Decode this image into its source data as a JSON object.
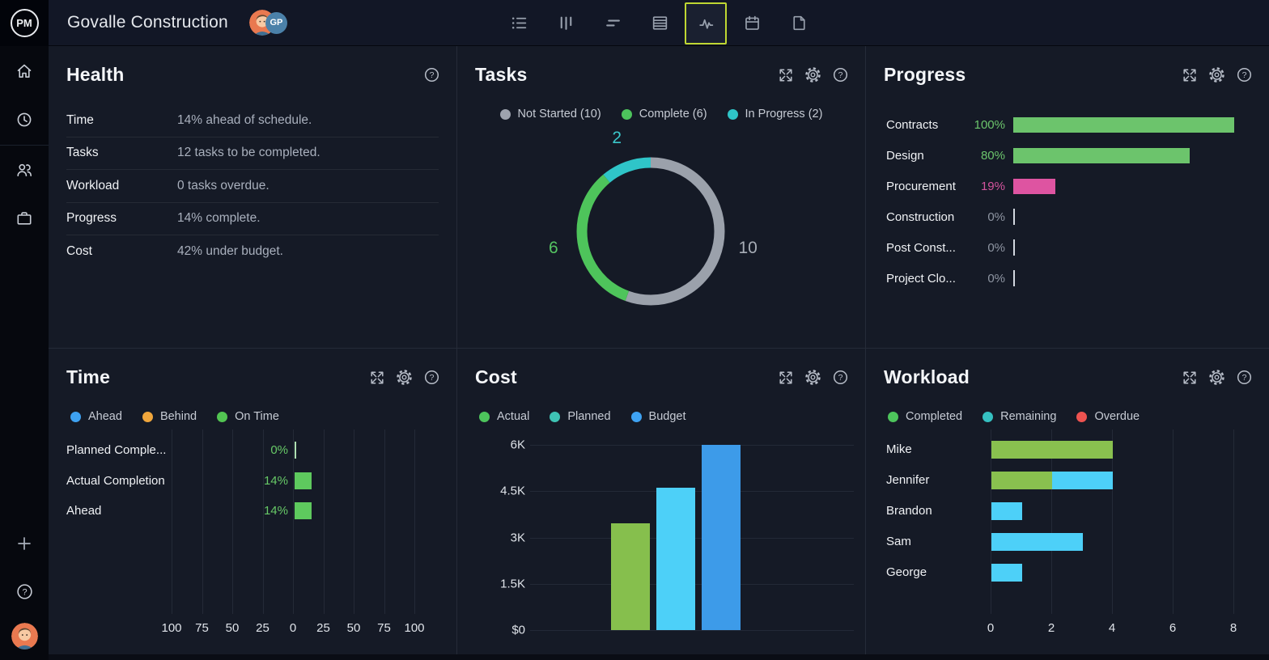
{
  "app": {
    "logo_text": "PM"
  },
  "topbar": {
    "title": "Govalle Construction",
    "avatar_badge_text": "GP",
    "selected_border_color": "#BFD732",
    "nav_items": [
      {
        "id": "task-list",
        "selected": false
      },
      {
        "id": "board",
        "selected": false
      },
      {
        "id": "gantt",
        "selected": false
      },
      {
        "id": "sheet",
        "selected": false
      },
      {
        "id": "activity-dashboard",
        "selected": true
      },
      {
        "id": "calendar",
        "selected": false
      },
      {
        "id": "documents",
        "selected": false
      }
    ]
  },
  "panels": {
    "health": {
      "title": "Health",
      "rows": [
        {
          "label": "Time",
          "value": "14% ahead of schedule."
        },
        {
          "label": "Tasks",
          "value": "12 tasks to be completed."
        },
        {
          "label": "Workload",
          "value": "0 tasks overdue."
        },
        {
          "label": "Progress",
          "value": "14% complete."
        },
        {
          "label": "Cost",
          "value": "42% under budget."
        }
      ]
    },
    "tasks": {
      "title": "Tasks",
      "chart_data": {
        "type": "pie",
        "donut": true,
        "total": 18,
        "legend": [
          {
            "label": "Not Started (10)",
            "color": "#9EA3AE"
          },
          {
            "label": "Complete (6)",
            "color": "#4DC45C"
          },
          {
            "label": "In Progress (2)",
            "color": "#2FC5C8"
          }
        ],
        "segments": [
          {
            "name": "Not Started",
            "value": 10,
            "color": "#9BA1AB",
            "label_color": "#A7ADB6"
          },
          {
            "name": "Complete",
            "value": 6,
            "color": "#4EC45B",
            "label_color": "#55C562"
          },
          {
            "name": "In Progress",
            "value": 2,
            "color": "#2FC5C8",
            "label_color": "#3BC8CB"
          }
        ]
      }
    },
    "progress": {
      "title": "Progress",
      "chart_data": {
        "type": "bar",
        "orientation": "horizontal",
        "max_pct": 100,
        "rows": [
          {
            "label": "Contracts",
            "pct_label": "100%",
            "value": 100,
            "bar_color": "#6CC46C",
            "pct_color": "#6CC56C"
          },
          {
            "label": "Design",
            "pct_label": "80%",
            "value": 80,
            "bar_color": "#6CC46C",
            "pct_color": "#6CC56C"
          },
          {
            "label": "Procurement",
            "pct_label": "19%",
            "value": 19,
            "bar_color": "#DE54A1",
            "pct_color": "#D4549E"
          },
          {
            "label": "Construction",
            "pct_label": "0%",
            "value": 0,
            "bar_color": "#D2D7DF",
            "pct_color": "#8E95A2"
          },
          {
            "label": "Post Const...",
            "pct_label": "0%",
            "value": 0,
            "bar_color": "#D2D7DF",
            "pct_color": "#8E95A2"
          },
          {
            "label": "Project Clo...",
            "pct_label": "0%",
            "value": 0,
            "bar_color": "#D2D7DF",
            "pct_color": "#8E95A2"
          }
        ]
      }
    },
    "time": {
      "title": "Time",
      "chart_data": {
        "type": "bar",
        "orientation": "horizontal",
        "axis_range": [
          -100,
          100
        ],
        "axis_ticks": [
          "100",
          "75",
          "50",
          "25",
          "0",
          "25",
          "50",
          "75",
          "100"
        ],
        "legend": [
          {
            "label": "Ahead",
            "color": "#3EA2F2"
          },
          {
            "label": "Behind",
            "color": "#F0A63C"
          },
          {
            "label": "On Time",
            "color": "#52C452"
          }
        ],
        "rows": [
          {
            "label": "Planned Comple...",
            "pct_label": "0%",
            "value": 0,
            "bar_color": "#AEDFB2",
            "pct_color": "#67C967"
          },
          {
            "label": "Actual Completion",
            "pct_label": "14%",
            "value": 14,
            "bar_color": "#5EC95E",
            "pct_color": "#67C967"
          },
          {
            "label": "Ahead",
            "pct_label": "14%",
            "value": 14,
            "bar_color": "#5EC95E",
            "pct_color": "#67C967"
          }
        ]
      }
    },
    "cost": {
      "title": "Cost",
      "chart_data": {
        "type": "bar",
        "orientation": "vertical",
        "y_max": 6000,
        "y_ticks": [
          "6K",
          "4.5K",
          "3K",
          "1.5K",
          "$0"
        ],
        "legend": [
          {
            "label": "Actual",
            "color": "#4DC45C"
          },
          {
            "label": "Planned",
            "color": "#3EC3B4"
          },
          {
            "label": "Budget",
            "color": "#3EA2F2"
          }
        ],
        "bars": [
          {
            "name": "Actual",
            "value": 3450,
            "color": "#86BF4D"
          },
          {
            "name": "Planned",
            "value": 4600,
            "color": "#4DD0F8"
          },
          {
            "name": "Budget",
            "value": 6000,
            "color": "#3D9BE9"
          }
        ]
      }
    },
    "workload": {
      "title": "Workload",
      "chart_data": {
        "type": "bar",
        "orientation": "horizontal",
        "stacked": true,
        "axis_range": [
          0,
          8
        ],
        "axis_ticks": [
          "0",
          "2",
          "4",
          "6",
          "8"
        ],
        "legend": [
          {
            "label": "Completed",
            "color": "#4DC45C"
          },
          {
            "label": "Remaining",
            "color": "#35C0C1"
          },
          {
            "label": "Overdue",
            "color": "#EE5350"
          }
        ],
        "rows": [
          {
            "label": "Mike",
            "segments": [
              {
                "series": "Completed",
                "value": 4,
                "color": "#89C04F"
              }
            ]
          },
          {
            "label": "Jennifer",
            "segments": [
              {
                "series": "Completed",
                "value": 2,
                "color": "#89C04F"
              },
              {
                "series": "Remaining",
                "value": 2,
                "color": "#4DD0F8"
              }
            ]
          },
          {
            "label": "Brandon",
            "segments": [
              {
                "series": "Remaining",
                "value": 1,
                "color": "#4DD0F8"
              }
            ]
          },
          {
            "label": "Sam",
            "segments": [
              {
                "series": "Remaining",
                "value": 3,
                "color": "#4DD0F8"
              }
            ]
          },
          {
            "label": "George",
            "segments": [
              {
                "series": "Remaining",
                "value": 1,
                "color": "#4DD0F8"
              }
            ]
          }
        ]
      }
    }
  }
}
